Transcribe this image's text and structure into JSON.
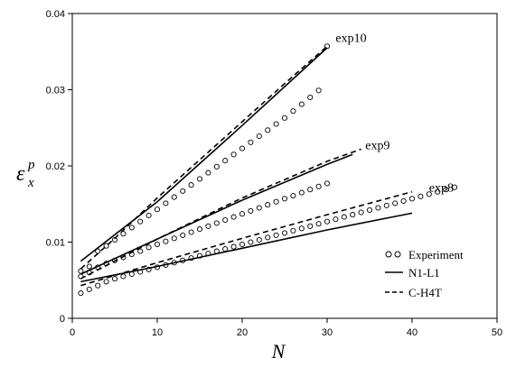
{
  "chart_data": {
    "type": "line",
    "xlabel": "N",
    "ylabel": {
      "symbol": "ε",
      "superscript": "p",
      "subscript": "x"
    },
    "xlim": [
      0,
      50
    ],
    "ylim": [
      0,
      0.04
    ],
    "xticks": [
      "0",
      "10",
      "20",
      "30",
      "40",
      "50"
    ],
    "yticks": [
      "0",
      "0.01",
      "0.02",
      "0.03",
      "0.04"
    ],
    "xtick_values": [
      0,
      10,
      20,
      30,
      40,
      50
    ],
    "ytick_values": [
      0,
      0.01,
      0.02,
      0.03,
      0.04
    ],
    "grid": false,
    "legend": {
      "position": "bottom-right",
      "entries": [
        {
          "label": "Experiment",
          "style": "circles"
        },
        {
          "label": "N1-L1",
          "style": "solid"
        },
        {
          "label": "C-H4T",
          "style": "dashed"
        }
      ]
    },
    "annotations": [
      {
        "text": "exp10",
        "x": 31,
        "y": 0.0363
      },
      {
        "text": "exp9",
        "x": 34.5,
        "y": 0.0222
      },
      {
        "text": "exp8",
        "x": 42,
        "y": 0.0166
      }
    ],
    "groups": [
      {
        "name": "exp10",
        "experiment": [
          [
            1,
            0.0062
          ],
          [
            2,
            0.0068
          ],
          [
            3,
            0.0088
          ],
          [
            4,
            0.0095
          ],
          [
            5,
            0.0103
          ],
          [
            6,
            0.0111
          ],
          [
            7,
            0.0119
          ],
          [
            8,
            0.0127
          ],
          [
            9,
            0.0135
          ],
          [
            10,
            0.0143
          ],
          [
            11,
            0.0151
          ],
          [
            12,
            0.0159
          ],
          [
            13,
            0.0167
          ],
          [
            14,
            0.0175
          ],
          [
            15,
            0.0183
          ],
          [
            16,
            0.0191
          ],
          [
            17,
            0.0199
          ],
          [
            18,
            0.0207
          ],
          [
            19,
            0.0215
          ],
          [
            20,
            0.0223
          ],
          [
            21,
            0.0231
          ],
          [
            22,
            0.0239
          ],
          [
            23,
            0.0247
          ],
          [
            24,
            0.0255
          ],
          [
            25,
            0.0263
          ],
          [
            26,
            0.0272
          ],
          [
            27,
            0.0281
          ],
          [
            28,
            0.029
          ],
          [
            29,
            0.0299
          ],
          [
            30,
            0.0357
          ]
        ],
        "n1_l1": [
          [
            1,
            0.0075
          ],
          [
            10,
            0.0153
          ],
          [
            20,
            0.0253
          ],
          [
            30,
            0.0355
          ]
        ],
        "c_h4t": [
          [
            1,
            0.0065
          ],
          [
            5,
            0.0105
          ],
          [
            10,
            0.0158
          ],
          [
            15,
            0.0208
          ],
          [
            20,
            0.0258
          ],
          [
            25,
            0.0308
          ],
          [
            30,
            0.0357
          ]
        ]
      },
      {
        "name": "exp9",
        "experiment": [
          [
            1,
            0.0055
          ],
          [
            2,
            0.006
          ],
          [
            3,
            0.0067
          ],
          [
            4,
            0.0072
          ],
          [
            5,
            0.0076
          ],
          [
            6,
            0.008
          ],
          [
            7,
            0.0084
          ],
          [
            8,
            0.0088
          ],
          [
            9,
            0.0093
          ],
          [
            10,
            0.0097
          ],
          [
            11,
            0.0101
          ],
          [
            12,
            0.0105
          ],
          [
            13,
            0.0109
          ],
          [
            14,
            0.0113
          ],
          [
            15,
            0.0117
          ],
          [
            16,
            0.0121
          ],
          [
            17,
            0.0125
          ],
          [
            18,
            0.0129
          ],
          [
            19,
            0.0133
          ],
          [
            20,
            0.0137
          ],
          [
            21,
            0.0141
          ],
          [
            22,
            0.0145
          ],
          [
            23,
            0.0149
          ],
          [
            24,
            0.0153
          ],
          [
            25,
            0.0157
          ],
          [
            26,
            0.0161
          ],
          [
            27,
            0.0165
          ],
          [
            28,
            0.0169
          ],
          [
            29,
            0.0173
          ],
          [
            30,
            0.0177
          ]
        ],
        "n1_l1": [
          [
            1,
            0.0058
          ],
          [
            10,
            0.0104
          ],
          [
            20,
            0.0155
          ],
          [
            30,
            0.0202
          ],
          [
            33,
            0.0215
          ]
        ],
        "c_h4t": [
          [
            1,
            0.0052
          ],
          [
            10,
            0.0104
          ],
          [
            20,
            0.0158
          ],
          [
            30,
            0.0206
          ],
          [
            34,
            0.0222
          ]
        ]
      },
      {
        "name": "exp8",
        "experiment": [
          [
            1,
            0.0033
          ],
          [
            2,
            0.0038
          ],
          [
            3,
            0.0043
          ],
          [
            4,
            0.0048
          ],
          [
            5,
            0.0052
          ],
          [
            6,
            0.0055
          ],
          [
            7,
            0.0058
          ],
          [
            8,
            0.0061
          ],
          [
            9,
            0.0064
          ],
          [
            10,
            0.0067
          ],
          [
            11,
            0.007
          ],
          [
            12,
            0.0073
          ],
          [
            13,
            0.0076
          ],
          [
            14,
            0.0079
          ],
          [
            15,
            0.0082
          ],
          [
            16,
            0.0085
          ],
          [
            17,
            0.0088
          ],
          [
            18,
            0.0091
          ],
          [
            19,
            0.0094
          ],
          [
            20,
            0.0097
          ],
          [
            21,
            0.01
          ],
          [
            22,
            0.0103
          ],
          [
            23,
            0.0106
          ],
          [
            24,
            0.0109
          ],
          [
            25,
            0.0112
          ],
          [
            26,
            0.0115
          ],
          [
            27,
            0.0118
          ],
          [
            28,
            0.0121
          ],
          [
            29,
            0.0124
          ],
          [
            30,
            0.0127
          ],
          [
            31,
            0.013
          ],
          [
            32,
            0.0133
          ],
          [
            33,
            0.0136
          ],
          [
            34,
            0.0139
          ],
          [
            35,
            0.0142
          ],
          [
            36,
            0.0145
          ],
          [
            37,
            0.0148
          ],
          [
            38,
            0.0151
          ],
          [
            39,
            0.0154
          ],
          [
            40,
            0.0157
          ],
          [
            41,
            0.016
          ],
          [
            42,
            0.0163
          ],
          [
            43,
            0.0166
          ],
          [
            44,
            0.0169
          ],
          [
            45,
            0.0172
          ]
        ],
        "n1_l1": [
          [
            1,
            0.0048
          ],
          [
            10,
            0.0068
          ],
          [
            20,
            0.0092
          ],
          [
            30,
            0.0116
          ],
          [
            40,
            0.0138
          ]
        ],
        "c_h4t": [
          [
            1,
            0.0043
          ],
          [
            10,
            0.0073
          ],
          [
            20,
            0.0105
          ],
          [
            30,
            0.0136
          ],
          [
            40,
            0.0166
          ]
        ]
      }
    ]
  }
}
